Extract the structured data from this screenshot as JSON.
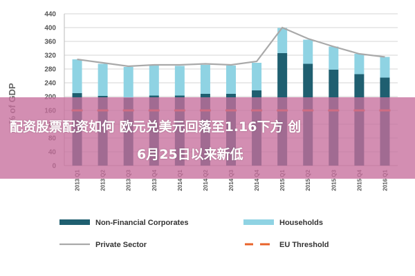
{
  "chart_data": {
    "type": "bar",
    "ylabel": "% of GDP",
    "ylim": [
      0,
      440
    ],
    "yticks": [
      0,
      40,
      80,
      120,
      160,
      200,
      240,
      280,
      320,
      360,
      400,
      440
    ],
    "categories": [
      "2013 Q1",
      "2013 Q2",
      "2013 Q3",
      "2013 Q4",
      "2014 Q1",
      "2014 Q2",
      "2014 Q3",
      "2014 Q4",
      "2015 Q1",
      "2015 Q2",
      "2015 Q3",
      "2015 Q4",
      "2016 Q1"
    ],
    "series": [
      {
        "name": "Non-Financial Corporates",
        "kind": "stacked-bar",
        "color": "#1f5f70",
        "values": [
          210,
          202,
          196,
          203,
          203,
          208,
          208,
          218,
          326,
          295,
          278,
          265,
          255
        ]
      },
      {
        "name": "Households",
        "kind": "stacked-bar",
        "color": "#8fd3e3",
        "values": [
          98,
          93,
          90,
          88,
          86,
          84,
          82,
          80,
          73,
          70,
          67,
          59,
          60
        ]
      },
      {
        "name": "Private Sector",
        "kind": "line",
        "color": "#a9a9a9",
        "values": [
          308,
          298,
          288,
          292,
          292,
          295,
          292,
          302,
          400,
          368,
          345,
          324,
          315
        ]
      },
      {
        "name": "EU Threshold",
        "kind": "dashed-line",
        "color": "#e8632a",
        "values": [
          160,
          160,
          160,
          160,
          160,
          160,
          160,
          160,
          160,
          160,
          160,
          160,
          160
        ]
      }
    ],
    "grid": true,
    "legend_placement": "bottom"
  },
  "overlay": {
    "line1": "配资股票配资如何 欧元兑美元回落至1.16下方 创",
    "line2": "6月25日以来新低"
  }
}
